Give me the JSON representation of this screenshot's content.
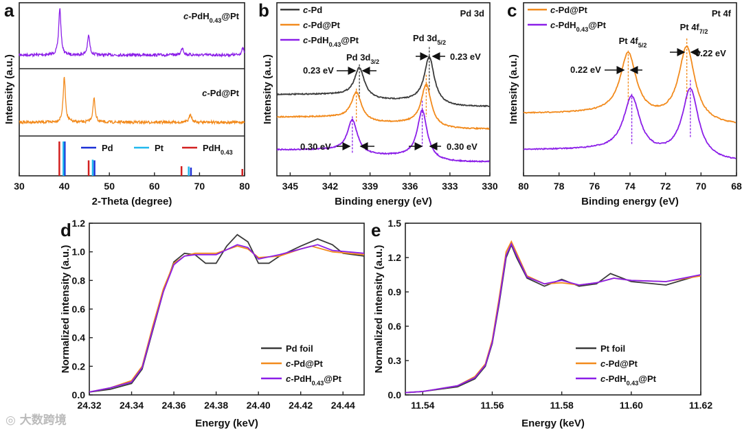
{
  "watermark": "大数跨境",
  "colors": {
    "black": "#3a3a3a",
    "orange": "#f28a1c",
    "purple": "#8b1ee8",
    "pd_ref": "#1a2fd6",
    "pt_ref": "#1fb8ee",
    "pdh_ref": "#d21f1f"
  },
  "chart_data": [
    {
      "id": "a",
      "panel_letter": "a",
      "type": "line",
      "xlabel": "2-Theta (degree)",
      "ylabel": "Intensity (a.u.)",
      "xlim": [
        30,
        80
      ],
      "xticks": [
        30,
        40,
        50,
        60,
        70,
        80
      ],
      "series": [
        {
          "name": "c-PdH_{0.43}@Pt",
          "color": "purple",
          "peaks": [
            [
              39.0,
              1.0
            ],
            [
              45.4,
              0.42
            ],
            [
              66.2,
              0.16
            ],
            [
              79.6,
              0.14
            ]
          ]
        },
        {
          "name": "c-Pd@Pt",
          "color": "orange",
          "peaks": [
            [
              40.0,
              1.0
            ],
            [
              46.6,
              0.52
            ],
            [
              68.0,
              0.19
            ]
          ]
        }
      ],
      "reference": [
        {
          "name": "Pd",
          "color": "pd_ref",
          "lines": [
            [
              40.1,
              1.0
            ],
            [
              46.7,
              0.45
            ],
            [
              68.1,
              0.24
            ]
          ]
        },
        {
          "name": "Pt",
          "color": "pt_ref",
          "lines": [
            [
              39.8,
              1.0
            ],
            [
              46.3,
              0.47
            ],
            [
              67.6,
              0.27
            ]
          ]
        },
        {
          "name": "PdH_{0.43}",
          "color": "pdh_ref",
          "lines": [
            [
              38.9,
              1.0
            ],
            [
              45.4,
              0.45
            ],
            [
              66.0,
              0.28
            ],
            [
              79.5,
              0.2
            ]
          ]
        }
      ]
    },
    {
      "id": "b",
      "panel_letter": "b",
      "type": "line",
      "title": "Pd 3d",
      "xlabel": "Binding energy (eV)",
      "ylabel": "Intensity (a.u.)",
      "xlim": [
        346,
        330
      ],
      "xticks": [
        345,
        342,
        339,
        336,
        333,
        330
      ],
      "series": [
        {
          "name": "c-Pd",
          "color": "black",
          "baseline": 0.4,
          "peaks": [
            [
              334.55,
              0.27
            ],
            [
              339.8,
              0.17
            ]
          ]
        },
        {
          "name": "c-Pd@Pt",
          "color": "orange",
          "baseline": 0.27,
          "peaks": [
            [
              334.78,
              0.24
            ],
            [
              340.03,
              0.16
            ]
          ]
        },
        {
          "name": "c-PdH_{0.43}@Pt",
          "color": "purple",
          "baseline": 0.08,
          "peaks": [
            [
              335.08,
              0.28
            ],
            [
              340.33,
              0.19
            ]
          ]
        }
      ],
      "annotations": {
        "peak1": "Pd 3d_{3/2}",
        "peak2": "Pd 3d_{5/2}",
        "shift_top_left": "0.23 eV",
        "shift_top_right": "0.23 eV",
        "shift_bot_left": "0.30 eV",
        "shift_bot_right": "0.30 eV"
      }
    },
    {
      "id": "c",
      "panel_letter": "c",
      "type": "line",
      "title": "Pt 4f",
      "xlabel": "Binding energy (eV)",
      "ylabel": "Intensity (a.u.)",
      "xlim": [
        80,
        68
      ],
      "xticks": [
        80,
        78,
        76,
        74,
        72,
        70,
        68
      ],
      "series": [
        {
          "name": "c-Pd@Pt",
          "color": "orange",
          "baseline": 0.29,
          "peaks": [
            [
              74.1,
              0.36
            ],
            [
              70.8,
              0.43
            ]
          ]
        },
        {
          "name": "c-PdH_{0.43}@Pt",
          "color": "purple",
          "baseline": 0.08,
          "peaks": [
            [
              73.9,
              0.32
            ],
            [
              70.6,
              0.4
            ]
          ]
        }
      ],
      "annotations": {
        "peak1": "Pt 4f_{5/2}",
        "peak2": "Pt 4f_{7/2}",
        "shift_left": "0.22 eV",
        "shift_right": "0.22 eV"
      }
    },
    {
      "id": "d",
      "panel_letter": "d",
      "type": "line",
      "xlabel": "Energy (keV)",
      "ylabel": "Normalized intensity (a.u.)",
      "xlim": [
        24.32,
        24.45
      ],
      "ylim": [
        0,
        1.2
      ],
      "xticks": [
        24.32,
        24.34,
        24.36,
        24.38,
        24.4,
        24.42,
        24.44
      ],
      "yticks": [
        0.0,
        0.2,
        0.4,
        0.6,
        0.8,
        1.0,
        1.2
      ],
      "series": [
        {
          "name": "Pd foil",
          "color": "black",
          "points": [
            [
              24.32,
              0.02
            ],
            [
              24.33,
              0.04
            ],
            [
              24.34,
              0.08
            ],
            [
              24.345,
              0.18
            ],
            [
              24.35,
              0.45
            ],
            [
              24.355,
              0.72
            ],
            [
              24.36,
              0.93
            ],
            [
              24.365,
              0.99
            ],
            [
              24.37,
              0.98
            ],
            [
              24.375,
              0.92
            ],
            [
              24.38,
              0.92
            ],
            [
              24.385,
              1.04
            ],
            [
              24.39,
              1.12
            ],
            [
              24.395,
              1.07
            ],
            [
              24.4,
              0.92
            ],
            [
              24.405,
              0.92
            ],
            [
              24.41,
              0.97
            ],
            [
              24.42,
              1.04
            ],
            [
              24.428,
              1.09
            ],
            [
              24.435,
              1.05
            ],
            [
              24.44,
              0.99
            ],
            [
              24.45,
              0.97
            ]
          ]
        },
        {
          "name": "c-Pd@Pt",
          "color": "orange",
          "points": [
            [
              24.32,
              0.02
            ],
            [
              24.33,
              0.05
            ],
            [
              24.34,
              0.1
            ],
            [
              24.345,
              0.2
            ],
            [
              24.35,
              0.48
            ],
            [
              24.355,
              0.74
            ],
            [
              24.36,
              0.92
            ],
            [
              24.365,
              0.97
            ],
            [
              24.37,
              0.99
            ],
            [
              24.38,
              0.99
            ],
            [
              24.39,
              1.04
            ],
            [
              24.395,
              1.02
            ],
            [
              24.4,
              0.96
            ],
            [
              24.41,
              0.97
            ],
            [
              24.42,
              1.02
            ],
            [
              24.425,
              1.04
            ],
            [
              24.435,
              1.0
            ],
            [
              24.45,
              0.98
            ]
          ]
        },
        {
          "name": "c-PdH_{0.43}@Pt",
          "color": "purple",
          "points": [
            [
              24.32,
              0.02
            ],
            [
              24.33,
              0.05
            ],
            [
              24.34,
              0.09
            ],
            [
              24.345,
              0.19
            ],
            [
              24.35,
              0.46
            ],
            [
              24.355,
              0.72
            ],
            [
              24.36,
              0.91
            ],
            [
              24.365,
              0.97
            ],
            [
              24.37,
              0.98
            ],
            [
              24.38,
              0.98
            ],
            [
              24.39,
              1.05
            ],
            [
              24.395,
              1.03
            ],
            [
              24.4,
              0.95
            ],
            [
              24.41,
              0.98
            ],
            [
              24.42,
              1.02
            ],
            [
              24.428,
              1.05
            ],
            [
              24.435,
              1.01
            ],
            [
              24.45,
              0.99
            ]
          ]
        }
      ]
    },
    {
      "id": "e",
      "panel_letter": "e",
      "type": "line",
      "xlabel": "Energy (keV)",
      "ylabel": "Normalized intensity (a.u.)",
      "xlim": [
        11.535,
        11.62
      ],
      "ylim": [
        0,
        1.5
      ],
      "xticks": [
        11.54,
        11.56,
        11.58,
        11.6,
        11.62
      ],
      "yticks": [
        0.0,
        0.3,
        0.6,
        0.9,
        1.2,
        1.5
      ],
      "series": [
        {
          "name": "Pt foil",
          "color": "black",
          "points": [
            [
              11.535,
              0.02
            ],
            [
              11.54,
              0.03
            ],
            [
              11.55,
              0.07
            ],
            [
              11.555,
              0.14
            ],
            [
              11.558,
              0.25
            ],
            [
              11.56,
              0.45
            ],
            [
              11.562,
              0.8
            ],
            [
              11.564,
              1.2
            ],
            [
              11.5655,
              1.31
            ],
            [
              11.567,
              1.2
            ],
            [
              11.57,
              1.02
            ],
            [
              11.575,
              0.95
            ],
            [
              11.58,
              1.01
            ],
            [
              11.585,
              0.95
            ],
            [
              11.59,
              0.97
            ],
            [
              11.594,
              1.06
            ],
            [
              11.6,
              0.99
            ],
            [
              11.61,
              0.96
            ],
            [
              11.62,
              1.05
            ]
          ]
        },
        {
          "name": "c-Pd@Pt",
          "color": "orange",
          "points": [
            [
              11.535,
              0.02
            ],
            [
              11.54,
              0.03
            ],
            [
              11.55,
              0.08
            ],
            [
              11.555,
              0.16
            ],
            [
              11.558,
              0.27
            ],
            [
              11.56,
              0.48
            ],
            [
              11.562,
              0.85
            ],
            [
              11.564,
              1.25
            ],
            [
              11.5655,
              1.34
            ],
            [
              11.567,
              1.24
            ],
            [
              11.57,
              1.04
            ],
            [
              11.575,
              0.97
            ],
            [
              11.58,
              0.98
            ],
            [
              11.585,
              0.96
            ],
            [
              11.59,
              0.98
            ],
            [
              11.595,
              1.02
            ],
            [
              11.6,
              1.0
            ],
            [
              11.61,
              0.99
            ],
            [
              11.62,
              1.04
            ]
          ]
        },
        {
          "name": "c-PdH_{0.43}@Pt",
          "color": "purple",
          "points": [
            [
              11.535,
              0.02
            ],
            [
              11.54,
              0.03
            ],
            [
              11.55,
              0.08
            ],
            [
              11.555,
              0.15
            ],
            [
              11.558,
              0.26
            ],
            [
              11.56,
              0.46
            ],
            [
              11.562,
              0.82
            ],
            [
              11.564,
              1.22
            ],
            [
              11.5655,
              1.32
            ],
            [
              11.567,
              1.22
            ],
            [
              11.57,
              1.03
            ],
            [
              11.575,
              0.97
            ],
            [
              11.58,
              1.0
            ],
            [
              11.585,
              0.96
            ],
            [
              11.59,
              0.98
            ],
            [
              11.595,
              1.02
            ],
            [
              11.6,
              1.0
            ],
            [
              11.61,
              0.99
            ],
            [
              11.62,
              1.05
            ]
          ]
        }
      ]
    }
  ]
}
